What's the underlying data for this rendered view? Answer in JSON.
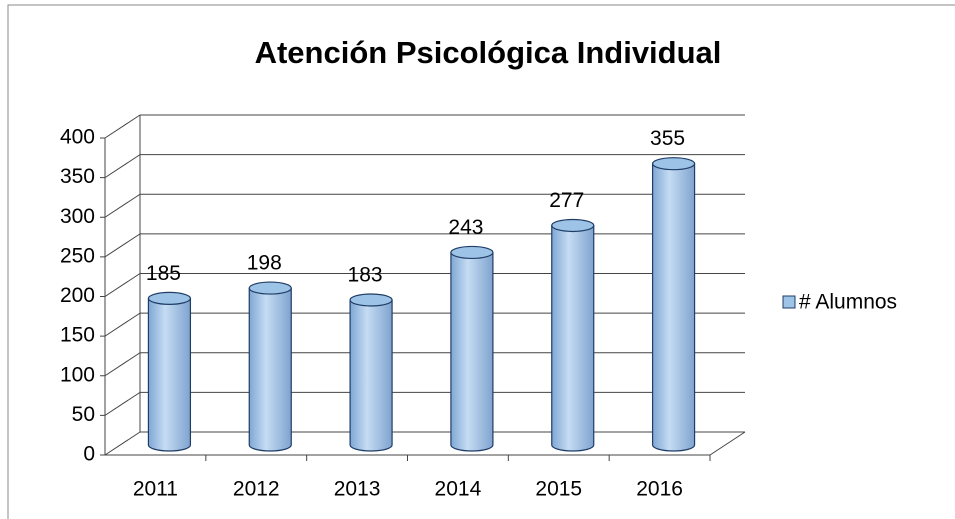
{
  "chart_data": {
    "type": "bar3d",
    "title": "Atención Psicológica Individual",
    "categories": [
      "2011",
      "2012",
      "2013",
      "2014",
      "2015",
      "2016"
    ],
    "series": [
      {
        "name": "# Alumnos",
        "color": "#9dc3e6",
        "values": [
          185,
          198,
          183,
          243,
          277,
          355
        ]
      }
    ],
    "ylim": [
      0,
      400
    ],
    "yticks": [
      0,
      50,
      100,
      150,
      200,
      250,
      300,
      350,
      400
    ],
    "grid": true,
    "legend": "right"
  }
}
